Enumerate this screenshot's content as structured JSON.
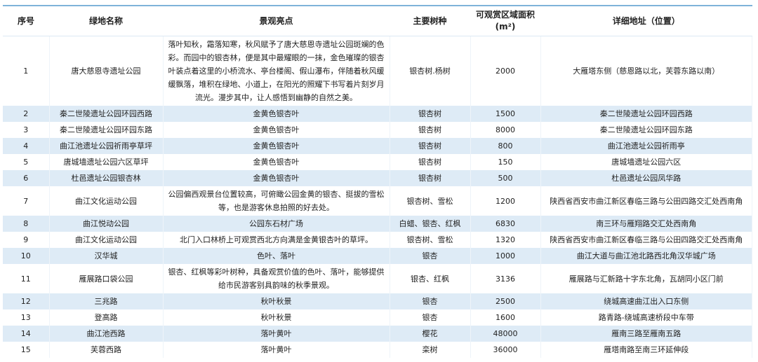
{
  "headers": [
    "序号",
    "绿地名称",
    "景观亮点",
    "主要树种",
    "可观赏区域面积",
    "(m²)",
    "详细地址（位置）"
  ],
  "rows": [
    {
      "no": "1",
      "name": "唐大慈恩寺遗址公园",
      "highlight": "落叶知秋，霜落知寒，秋风赋予了唐大慈恩寺遗址公园斑斓的色彩。而园中的银杏林，便是其中最耀眼的一抹，金色璀璨的银杏叶装点着这里的小桥流水、亭台楼阁、假山瀑布，伴随着秋风缓缓飘落，堆积在绿地、小道上，在阳光的照耀下书写着片刻岁月流光。漫步其中，让人感悟到幽静的自然之美。",
      "trees": "银杏树.杨树",
      "area": "2000",
      "address": "大雁塔东侧（慈恩路以北，芙蓉东路以南）"
    },
    {
      "no": "2",
      "name": "秦二世陵遗址公园环园西路",
      "highlight": "金黄色银杏叶",
      "trees": "银杏树",
      "area": "1500",
      "address": "秦二世陵遗址公园环园西路"
    },
    {
      "no": "3",
      "name": "秦二世陵遗址公园环园东路",
      "highlight": "金黄色银杏叶",
      "trees": "银杏树",
      "area": "8000",
      "address": "秦二世陵遗址公园环园东路"
    },
    {
      "no": "4",
      "name": "曲江池遗址公园祈雨亭草坪",
      "highlight": "金黄色银杏叶",
      "trees": "银杏树",
      "area": "800",
      "address": "曲江池遗址公园祈雨亭"
    },
    {
      "no": "5",
      "name": "唐城墙遗址公园六区草坪",
      "highlight": "金黄色银杏叶",
      "trees": "银杏树",
      "area": "150",
      "address": "唐城墙遗址公园六区"
    },
    {
      "no": "6",
      "name": "杜邑遗址公园银杏林",
      "highlight": "金黄色银杏叶",
      "trees": "银杏树",
      "area": "500",
      "address": "杜邑遗址公园凤华路"
    },
    {
      "no": "7",
      "name": "曲江文化运动公园",
      "highlight": "公园偏西观景台位置较高，可俯瞰公园金黄的银杏、挺拔的雪松等，也是游客休息拍照的好去处。",
      "trees": "银杏树、雪松",
      "area": "1200",
      "address": "陕西省西安市曲江新区春临三路与公田四路交汇处西南角"
    },
    {
      "no": "8",
      "name": "曲江悦动公园",
      "highlight": "公园东石材广场",
      "trees": "白蜡、银杏、红枫",
      "area": "6830",
      "address": "南三环与雁翔路交汇处西南角"
    },
    {
      "no": "9",
      "name": "曲江文化运动公园",
      "highlight": "北门入口林桥上可观赏西北方向满是金黄银杏叶的草坪。",
      "trees": "银杏树、雪松",
      "area": "1320",
      "address": "陕西省西安市曲江新区春临三路与公田四路交汇处西南角"
    },
    {
      "no": "10",
      "name": "汉华城",
      "highlight": "色叶、落叶",
      "trees": "银杏",
      "area": "1000",
      "address": "曲江大道与曲江池北路西北角汉华城广场"
    },
    {
      "no": "11",
      "name": "雁展路口袋公园",
      "highlight": "银杏、红枫等彩叶树种，具备观赏价值的色叶、落叶，能够提供给市民游客别具韵味的秋季景观。",
      "trees": "银杏、红枫",
      "area": "3136",
      "address": "雁展路与汇新路十字东北角，瓦胡同小区门前"
    },
    {
      "no": "12",
      "name": "三兆路",
      "highlight": "秋叶秋景",
      "trees": "银杏",
      "area": "2500",
      "address": "绕城高速曲江出入口东侧"
    },
    {
      "no": "13",
      "name": "登高路",
      "highlight": "秋叶秋景",
      "trees": "银杏",
      "area": "1600",
      "address": "路青路-绕城高速桥段中车带"
    },
    {
      "no": "14",
      "name": "曲江池西路",
      "highlight": "落叶黄叶",
      "trees": "樱花",
      "area": "48000",
      "address": "雁南三路至雁南五路"
    },
    {
      "no": "15",
      "name": "芙蓉西路",
      "highlight": "落叶黄叶",
      "trees": "栾树",
      "area": "36000",
      "address": "雁塔南路至南三环延伸段"
    }
  ],
  "colors": {
    "header_border": "#7fb3d9",
    "alt_row": "#deebf6"
  }
}
